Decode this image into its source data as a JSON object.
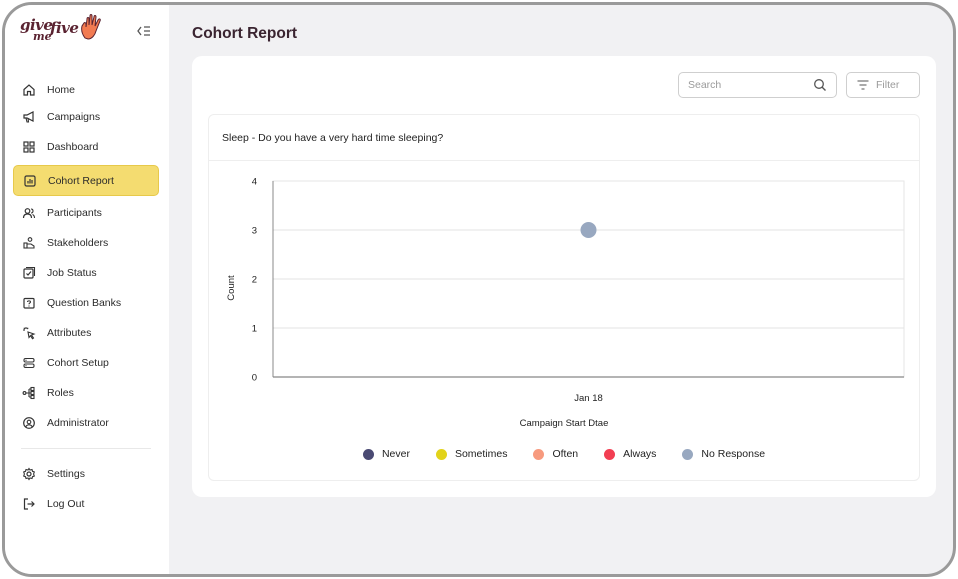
{
  "sidebar": {
    "logo": {
      "give": "give",
      "me": "me",
      "five": "five"
    },
    "items": [
      {
        "label": "Home",
        "icon": "home-icon",
        "active": false
      },
      {
        "label": "Campaigns",
        "icon": "megaphone-icon",
        "active": false
      },
      {
        "label": "Dashboard",
        "icon": "grid-icon",
        "active": false
      },
      {
        "label": "Cohort Report",
        "icon": "report-icon",
        "active": true
      },
      {
        "label": "Participants",
        "icon": "users-icon",
        "active": false
      },
      {
        "label": "Stakeholders",
        "icon": "handshake-icon",
        "active": false
      },
      {
        "label": "Job Status",
        "icon": "checklist-icon",
        "active": false
      },
      {
        "label": "Question Banks",
        "icon": "question-icon",
        "active": false
      },
      {
        "label": "Attributes",
        "icon": "cursor-click-icon",
        "active": false
      },
      {
        "label": "Cohort Setup",
        "icon": "server-icon",
        "active": false
      },
      {
        "label": "Roles",
        "icon": "hierarchy-icon",
        "active": false
      },
      {
        "label": "Administrator",
        "icon": "user-circle-icon",
        "active": false
      }
    ],
    "bottom_items": [
      {
        "label": "Settings",
        "icon": "gear-icon"
      },
      {
        "label": "Log Out",
        "icon": "logout-icon"
      }
    ]
  },
  "header": {
    "title": "Cohort Report"
  },
  "toolbar": {
    "search_placeholder": "Search",
    "search_value": "",
    "filter_label": "Filter"
  },
  "panel": {
    "title": "Sleep - Do you have a very hard time sleeping?"
  },
  "colors": {
    "accent": "#f4dc70",
    "never": "#4a4a73",
    "sometimes": "#e2d31a",
    "often": "#f79a7e",
    "always": "#f23e52",
    "no_response": "#98a8c0"
  },
  "chart_data": {
    "type": "scatter",
    "xlabel": "Campaign Start Dtae",
    "ylabel": "Count",
    "categories": [
      "Jan 18"
    ],
    "ylim": [
      0,
      4
    ],
    "yticks": [
      0,
      1,
      2,
      3,
      4
    ],
    "grid": true,
    "legend_position": "bottom",
    "series": [
      {
        "name": "Never",
        "color": "#4a4a73",
        "points": []
      },
      {
        "name": "Sometimes",
        "color": "#e2d31a",
        "points": []
      },
      {
        "name": "Often",
        "color": "#f79a7e",
        "points": []
      },
      {
        "name": "Always",
        "color": "#f23e52",
        "points": []
      },
      {
        "name": "No Response",
        "color": "#98a8c0",
        "points": [
          {
            "x": "Jan 18",
            "y": 3
          }
        ]
      }
    ]
  }
}
